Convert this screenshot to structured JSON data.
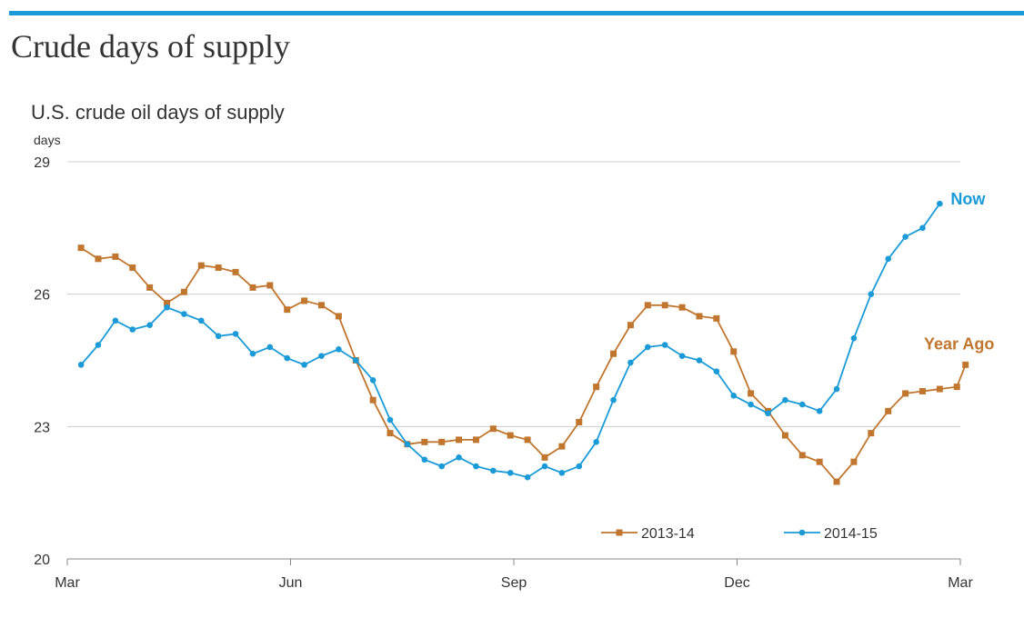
{
  "page": {
    "title": "Crude days of supply"
  },
  "colors": {
    "accent_bar": "#1a9bd7",
    "series_2013": "#c0762e",
    "series_2014": "#1a9bd7"
  },
  "chart_data": {
    "type": "line",
    "title": "U.S. crude oil days of supply",
    "ylabel": "days",
    "xlabel": "",
    "ylim": [
      20,
      29
    ],
    "yticks": [
      20,
      23,
      26,
      29
    ],
    "x_range": [
      0,
      52
    ],
    "xticks": [
      {
        "label": "Mar",
        "week": 0
      },
      {
        "label": "Jun",
        "week": 13
      },
      {
        "label": "Sep",
        "week": 26
      },
      {
        "label": "Dec",
        "week": 39
      },
      {
        "label": "Mar",
        "week": 52
      }
    ],
    "grid": true,
    "legend_position": "bottom-right",
    "annotations": [
      {
        "text": "Now",
        "series": 1
      },
      {
        "text": "Year Ago",
        "series": 0
      }
    ],
    "series": [
      {
        "name": "2013-14",
        "marker": "square",
        "x": [
          0.8,
          1.8,
          2.8,
          3.8,
          4.8,
          5.8,
          6.8,
          7.8,
          8.8,
          9.8,
          10.8,
          11.8,
          12.8,
          13.8,
          14.8,
          15.8,
          16.8,
          17.8,
          18.8,
          19.8,
          20.8,
          21.8,
          22.8,
          23.8,
          24.8,
          25.8,
          26.8,
          27.8,
          28.8,
          29.8,
          30.8,
          31.8,
          32.8,
          33.8,
          34.8,
          35.8,
          36.8,
          37.8,
          38.8,
          39.8,
          40.8,
          41.8,
          42.8,
          43.8,
          44.8,
          45.8,
          46.8,
          47.8,
          48.8,
          49.8,
          50.8,
          51.8
        ],
        "values": [
          27.05,
          26.8,
          26.85,
          26.6,
          26.15,
          25.8,
          26.05,
          26.65,
          26.6,
          26.5,
          26.15,
          26.2,
          25.65,
          25.85,
          25.75,
          25.5,
          24.5,
          23.6,
          22.85,
          22.6,
          22.65,
          22.65,
          22.7,
          22.7,
          22.95,
          22.8,
          22.7,
          22.3,
          22.55,
          23.1,
          23.9,
          24.65,
          25.3,
          25.75,
          25.75,
          25.7,
          25.5,
          25.45,
          24.7,
          23.75,
          23.35,
          22.8,
          22.35,
          22.2,
          21.75,
          22.2,
          22.85,
          23.35,
          23.75,
          23.8,
          23.85,
          23.9
        ],
        "end_point": {
          "x": 52.3,
          "value": 24.4
        }
      },
      {
        "name": "2014-15",
        "marker": "circle",
        "x": [
          0.8,
          1.8,
          2.8,
          3.8,
          4.8,
          5.8,
          6.8,
          7.8,
          8.8,
          9.8,
          10.8,
          11.8,
          12.8,
          13.8,
          14.8,
          15.8,
          16.8,
          17.8,
          18.8,
          19.8,
          20.8,
          21.8,
          22.8,
          23.8,
          24.8,
          25.8,
          26.8,
          27.8,
          28.8,
          29.8,
          30.8,
          31.8,
          32.8,
          33.8,
          34.8,
          35.8,
          36.8,
          37.8,
          38.8,
          39.8,
          40.8,
          41.8,
          42.8,
          43.8,
          44.8,
          45.8,
          46.8,
          47.8,
          48.8,
          49.8
        ],
        "values": [
          24.4,
          24.85,
          25.4,
          25.2,
          25.3,
          25.7,
          25.55,
          25.4,
          25.05,
          25.1,
          24.65,
          24.8,
          24.55,
          24.4,
          24.6,
          24.75,
          24.5,
          24.05,
          23.15,
          22.6,
          22.25,
          22.1,
          22.3,
          22.1,
          22.0,
          21.95,
          21.85,
          22.1,
          21.95,
          22.1,
          22.65,
          23.6,
          24.45,
          24.8,
          24.85,
          24.6,
          24.5,
          24.25,
          23.7,
          23.5,
          23.3,
          23.6,
          23.5,
          23.35,
          23.85,
          25.0,
          26.0,
          26.8,
          27.3,
          27.5
        ],
        "end_point": {
          "x": 50.8,
          "value": 28.05
        }
      }
    ]
  }
}
